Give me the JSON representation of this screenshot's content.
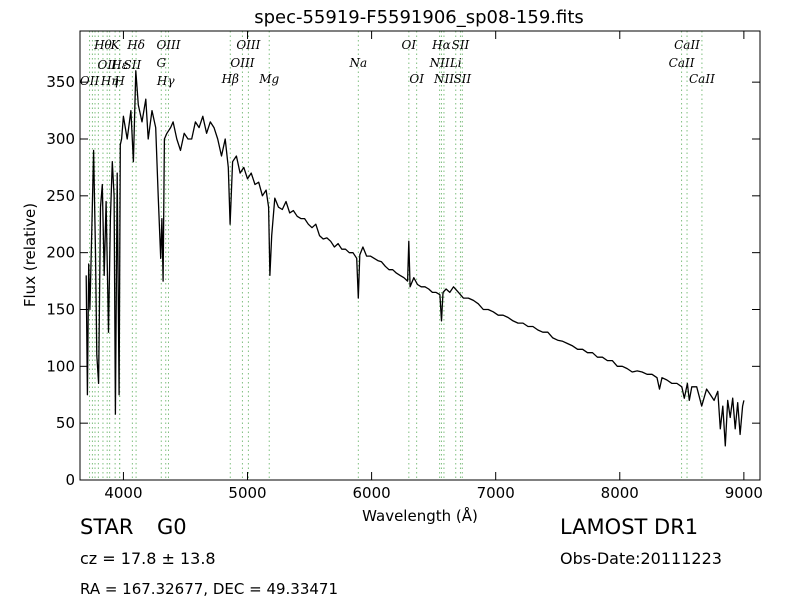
{
  "chart_data": {
    "type": "line",
    "title": "spec-55919-F5591906_sp08-159.fits",
    "xlabel": "Wavelength (Å)",
    "ylabel": "Flux (relative)",
    "xlim": [
      3650,
      9130
    ],
    "ylim": [
      0,
      395
    ],
    "xticks": [
      4000,
      5000,
      6000,
      7000,
      8000,
      9000
    ],
    "yticks": [
      0,
      50,
      100,
      150,
      200,
      250,
      300,
      350
    ],
    "grid": false,
    "series": [
      {
        "color": "#000000",
        "points": [
          [
            3700,
            180
          ],
          [
            3710,
            75
          ],
          [
            3720,
            190
          ],
          [
            3730,
            150
          ],
          [
            3745,
            220
          ],
          [
            3760,
            290
          ],
          [
            3775,
            200
          ],
          [
            3785,
            110
          ],
          [
            3800,
            85
          ],
          [
            3815,
            240
          ],
          [
            3830,
            260
          ],
          [
            3845,
            180
          ],
          [
            3860,
            245
          ],
          [
            3880,
            130
          ],
          [
            3895,
            230
          ],
          [
            3910,
            280
          ],
          [
            3925,
            250
          ],
          [
            3935,
            58
          ],
          [
            3950,
            270
          ],
          [
            3965,
            75
          ],
          [
            3975,
            295
          ],
          [
            3985,
            300
          ],
          [
            4000,
            320
          ],
          [
            4030,
            300
          ],
          [
            4060,
            325
          ],
          [
            4080,
            280
          ],
          [
            4100,
            360
          ],
          [
            4120,
            330
          ],
          [
            4150,
            315
          ],
          [
            4180,
            335
          ],
          [
            4200,
            300
          ],
          [
            4230,
            325
          ],
          [
            4260,
            310
          ],
          [
            4280,
            250
          ],
          [
            4300,
            195
          ],
          [
            4310,
            230
          ],
          [
            4320,
            175
          ],
          [
            4330,
            300
          ],
          [
            4350,
            305
          ],
          [
            4380,
            310
          ],
          [
            4400,
            315
          ],
          [
            4430,
            300
          ],
          [
            4460,
            290
          ],
          [
            4490,
            305
          ],
          [
            4520,
            300
          ],
          [
            4550,
            300
          ],
          [
            4580,
            315
          ],
          [
            4610,
            310
          ],
          [
            4640,
            320
          ],
          [
            4670,
            305
          ],
          [
            4700,
            315
          ],
          [
            4730,
            310
          ],
          [
            4760,
            300
          ],
          [
            4790,
            285
          ],
          [
            4820,
            300
          ],
          [
            4845,
            275
          ],
          [
            4860,
            225
          ],
          [
            4880,
            280
          ],
          [
            4910,
            285
          ],
          [
            4940,
            270
          ],
          [
            4970,
            275
          ],
          [
            5000,
            265
          ],
          [
            5030,
            270
          ],
          [
            5060,
            260
          ],
          [
            5090,
            262
          ],
          [
            5120,
            250
          ],
          [
            5150,
            255
          ],
          [
            5170,
            240
          ],
          [
            5180,
            180
          ],
          [
            5195,
            215
          ],
          [
            5220,
            248
          ],
          [
            5250,
            240
          ],
          [
            5280,
            238
          ],
          [
            5310,
            245
          ],
          [
            5340,
            235
          ],
          [
            5370,
            237
          ],
          [
            5400,
            232
          ],
          [
            5430,
            230
          ],
          [
            5460,
            230
          ],
          [
            5490,
            225
          ],
          [
            5520,
            222
          ],
          [
            5550,
            225
          ],
          [
            5580,
            215
          ],
          [
            5610,
            212
          ],
          [
            5640,
            213
          ],
          [
            5670,
            210
          ],
          [
            5700,
            205
          ],
          [
            5730,
            208
          ],
          [
            5760,
            203
          ],
          [
            5790,
            203
          ],
          [
            5820,
            200
          ],
          [
            5850,
            200
          ],
          [
            5880,
            195
          ],
          [
            5893,
            160
          ],
          [
            5905,
            198
          ],
          [
            5930,
            205
          ],
          [
            5960,
            197
          ],
          [
            5990,
            197
          ],
          [
            6020,
            195
          ],
          [
            6050,
            193
          ],
          [
            6080,
            192
          ],
          [
            6110,
            188
          ],
          [
            6140,
            185
          ],
          [
            6170,
            185
          ],
          [
            6200,
            182
          ],
          [
            6230,
            180
          ],
          [
            6260,
            178
          ],
          [
            6290,
            175
          ],
          [
            6300,
            210
          ],
          [
            6310,
            170
          ],
          [
            6340,
            178
          ],
          [
            6370,
            172
          ],
          [
            6400,
            170
          ],
          [
            6430,
            170
          ],
          [
            6460,
            168
          ],
          [
            6490,
            165
          ],
          [
            6520,
            165
          ],
          [
            6550,
            163
          ],
          [
            6563,
            140
          ],
          [
            6575,
            165
          ],
          [
            6600,
            168
          ],
          [
            6630,
            165
          ],
          [
            6660,
            170
          ],
          [
            6700,
            165
          ],
          [
            6740,
            160
          ],
          [
            6780,
            160
          ],
          [
            6820,
            158
          ],
          [
            6860,
            155
          ],
          [
            6900,
            150
          ],
          [
            6940,
            150
          ],
          [
            6980,
            148
          ],
          [
            7020,
            145
          ],
          [
            7060,
            145
          ],
          [
            7100,
            143
          ],
          [
            7140,
            140
          ],
          [
            7180,
            138
          ],
          [
            7220,
            138
          ],
          [
            7260,
            135
          ],
          [
            7300,
            135
          ],
          [
            7340,
            132
          ],
          [
            7380,
            130
          ],
          [
            7420,
            130
          ],
          [
            7460,
            125
          ],
          [
            7500,
            123
          ],
          [
            7540,
            122
          ],
          [
            7580,
            120
          ],
          [
            7620,
            118
          ],
          [
            7660,
            115
          ],
          [
            7700,
            115
          ],
          [
            7740,
            112
          ],
          [
            7780,
            112
          ],
          [
            7820,
            108
          ],
          [
            7860,
            108
          ],
          [
            7900,
            105
          ],
          [
            7940,
            105
          ],
          [
            7980,
            100
          ],
          [
            8020,
            100
          ],
          [
            8060,
            98
          ],
          [
            8100,
            95
          ],
          [
            8140,
            96
          ],
          [
            8180,
            95
          ],
          [
            8220,
            93
          ],
          [
            8260,
            93
          ],
          [
            8300,
            90
          ],
          [
            8320,
            80
          ],
          [
            8340,
            90
          ],
          [
            8380,
            88
          ],
          [
            8420,
            85
          ],
          [
            8460,
            85
          ],
          [
            8500,
            82
          ],
          [
            8520,
            72
          ],
          [
            8545,
            85
          ],
          [
            8560,
            70
          ],
          [
            8580,
            82
          ],
          [
            8620,
            82
          ],
          [
            8660,
            65
          ],
          [
            8700,
            80
          ],
          [
            8730,
            75
          ],
          [
            8760,
            70
          ],
          [
            8790,
            78
          ],
          [
            8810,
            45
          ],
          [
            8830,
            65
          ],
          [
            8850,
            30
          ],
          [
            8870,
            70
          ],
          [
            8890,
            55
          ],
          [
            8910,
            72
          ],
          [
            8930,
            45
          ],
          [
            8950,
            68
          ],
          [
            8970,
            40
          ],
          [
            8990,
            65
          ],
          [
            9000,
            70
          ]
        ]
      }
    ],
    "line_markers": {
      "color": "#7fbf7f",
      "lines": [
        {
          "x": 3727,
          "label": "OII",
          "row": 3
        },
        {
          "x": 3750,
          "label": "",
          "row": 0
        },
        {
          "x": 3771,
          "label": "",
          "row": 0
        },
        {
          "x": 3798,
          "label": "",
          "row": 0
        },
        {
          "x": 3835,
          "label": "Hθ",
          "row": 1
        },
        {
          "x": 3869,
          "label": "OII",
          "row": 2
        },
        {
          "x": 3889,
          "label": "Hη",
          "row": 3
        },
        {
          "x": 3933,
          "label": "K",
          "row": 1
        },
        {
          "x": 3969,
          "label": "H",
          "row": 3
        },
        {
          "x": 3970,
          "label": "Hε",
          "row": 2
        },
        {
          "x": 4072,
          "label": "SII",
          "row": 2
        },
        {
          "x": 4102,
          "label": "Hδ",
          "row": 1
        },
        {
          "x": 4305,
          "label": "G",
          "row": 4
        },
        {
          "x": 4341,
          "label": "Hγ",
          "row": 3
        },
        {
          "x": 4363,
          "label": "OIII",
          "row": 1
        },
        {
          "x": 4861,
          "label": "Hβ",
          "row": 5
        },
        {
          "x": 4959,
          "label": "OIII",
          "row": 4
        },
        {
          "x": 5007,
          "label": "OIII",
          "row": 1
        },
        {
          "x": 5175,
          "label": "Mg",
          "row": 5
        },
        {
          "x": 5893,
          "label": "Na",
          "row": 4
        },
        {
          "x": 6300,
          "label": "OI",
          "row": 1
        },
        {
          "x": 6363,
          "label": "OI",
          "row": 5
        },
        {
          "x": 6548,
          "label": "NII",
          "row": 4
        },
        {
          "x": 6563,
          "label": "Hα",
          "row": 1
        },
        {
          "x": 6583,
          "label": "NII",
          "row": 5
        },
        {
          "x": 6678,
          "label": "Li",
          "row": 4
        },
        {
          "x": 6716,
          "label": "SII",
          "row": 1
        },
        {
          "x": 6731,
          "label": "SII",
          "row": 5
        },
        {
          "x": 8498,
          "label": "CaII",
          "row": 4
        },
        {
          "x": 8542,
          "label": "CaII",
          "row": 1
        },
        {
          "x": 8662,
          "label": "CaII",
          "row": 5
        }
      ]
    }
  },
  "footer": {
    "object_class": "STAR",
    "subclass": "G0",
    "cz": "cz = 17.8 ± 13.8",
    "coords": "RA = 167.32677, DEC = 49.33471",
    "survey": "LAMOST DR1",
    "obs_date": "Obs-Date:20111223"
  }
}
